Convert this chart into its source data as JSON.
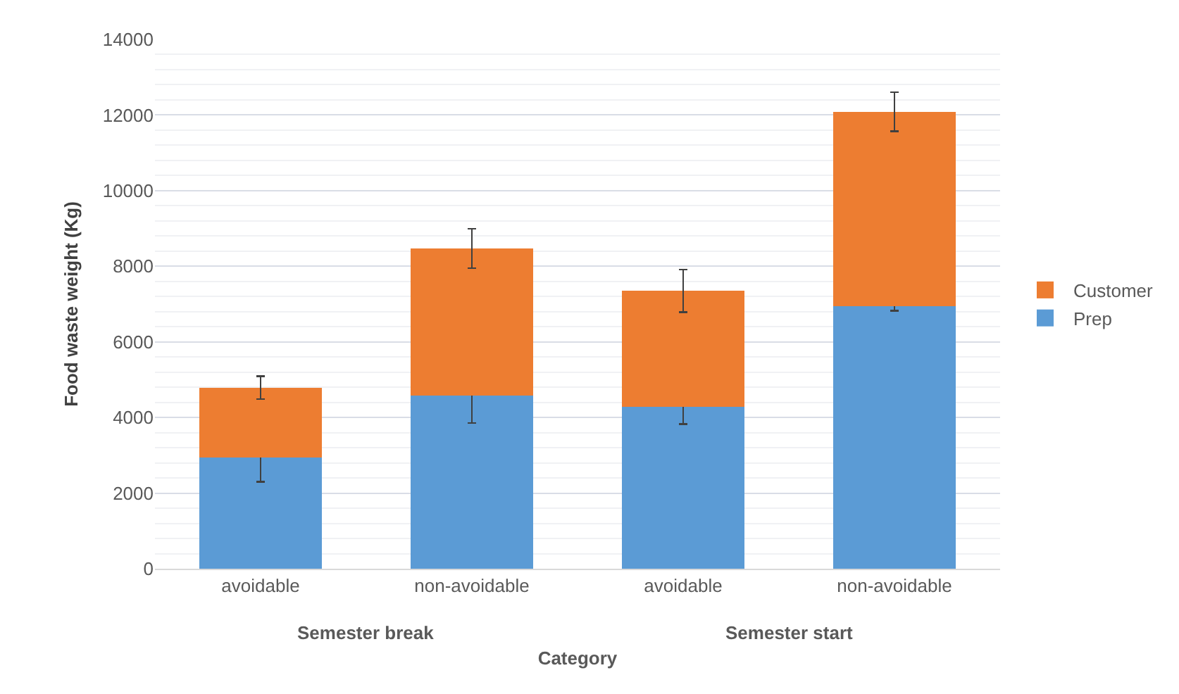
{
  "chart_data": {
    "type": "bar",
    "stacked": true,
    "xlabel": "Category",
    "ylabel": "Food waste weight (Kg)",
    "categories": [
      "avoidable",
      "non-avoidable",
      "avoidable",
      "non-avoidable"
    ],
    "series": [
      {
        "name": "Prep",
        "color": "#5b9bd5",
        "values": [
          2940,
          4580,
          4290,
          6950
        ],
        "errors": [
          640,
          725,
          465,
          130
        ]
      },
      {
        "name": "Customer",
        "color": "#ed7d31",
        "values": [
          1850,
          3890,
          3060,
          5140
        ],
        "errors": [
          300,
          520,
          565,
          515
        ]
      }
    ],
    "annotations": [
      "Semester break",
      "Semester start"
    ],
    "ylim": [
      0,
      14000
    ],
    "yticks": [
      0,
      2000,
      4000,
      6000,
      8000,
      10000,
      12000,
      14000
    ],
    "grid": "y",
    "legend": "right"
  }
}
